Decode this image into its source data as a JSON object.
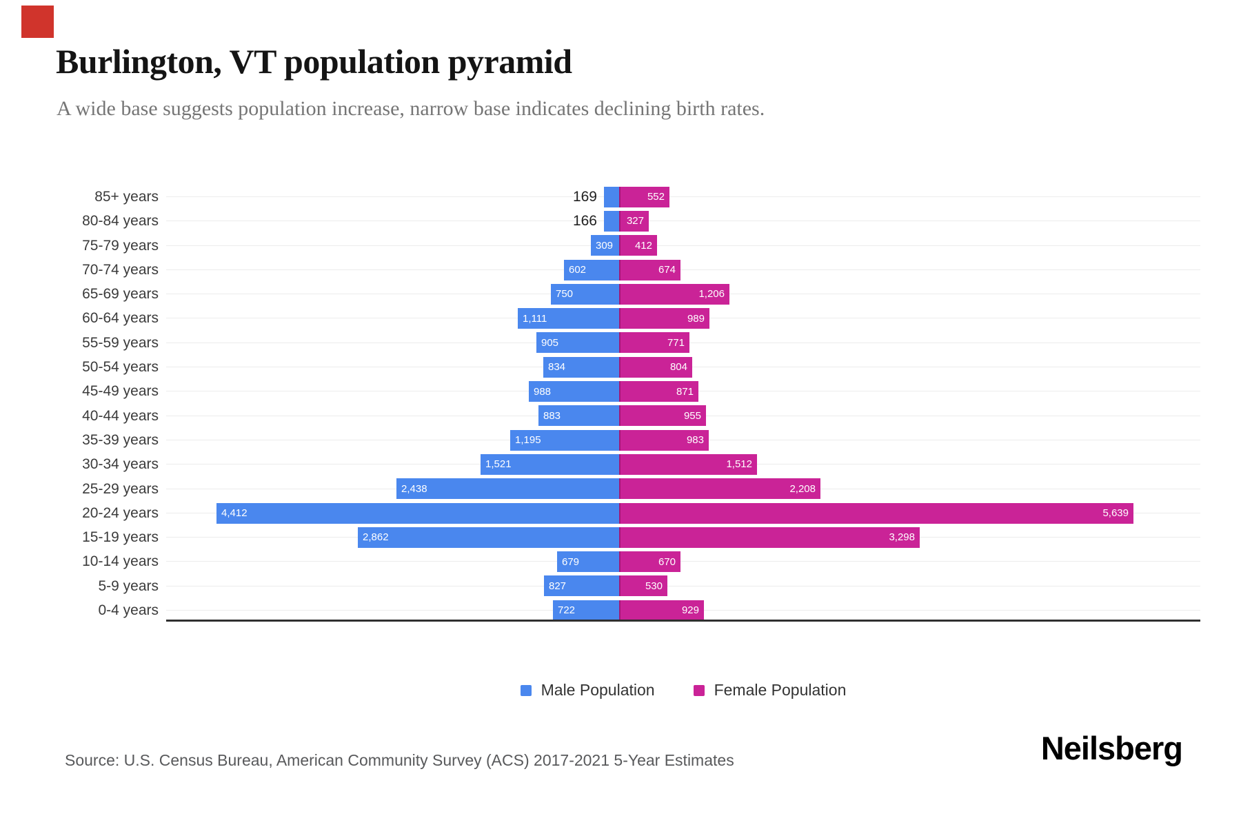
{
  "page": {
    "title": "Burlington, VT population pyramid",
    "subtitle": "A wide base suggests population increase, narrow base indicates declining birth rates.",
    "source": "Source: U.S. Census Bureau, American Community Survey (ACS) 2017-2021 5-Year Estimates",
    "brand": "Neilsberg",
    "marker_color": "#d0342c"
  },
  "legend": {
    "male_label": "Male Population",
    "female_label": "Female Population"
  },
  "colors": {
    "male": "#4a87ee",
    "female": "#ca2397",
    "gridline": "#ececec",
    "baseline": "#2f2f2f"
  },
  "chart_data": {
    "type": "bar",
    "variant": "population-pyramid",
    "title": "Burlington, VT population pyramid",
    "xlabel": "",
    "ylabel": "Age group",
    "grid": "horizontal-per-row",
    "legend_position": "bottom-center",
    "center_value": 0,
    "xlim_each_side": [
      0,
      5700
    ],
    "categories": [
      "85+ years",
      "80-84 years",
      "75-79 years",
      "70-74 years",
      "65-69 years",
      "60-64 years",
      "55-59 years",
      "50-54 years",
      "45-49 years",
      "40-44 years",
      "35-39 years",
      "30-34 years",
      "25-29 years",
      "20-24 years",
      "15-19 years",
      "10-14 years",
      "5-9 years",
      "0-4 years"
    ],
    "series": [
      {
        "name": "Male Population",
        "direction": "left",
        "values": [
          169,
          166,
          309,
          602,
          750,
          1111,
          905,
          834,
          988,
          883,
          1195,
          1521,
          2438,
          4412,
          2862,
          679,
          827,
          722
        ]
      },
      {
        "name": "Female Population",
        "direction": "right",
        "values": [
          552,
          327,
          412,
          674,
          1206,
          989,
          771,
          804,
          871,
          955,
          983,
          1512,
          2208,
          5639,
          3298,
          670,
          530,
          929
        ]
      }
    ]
  }
}
